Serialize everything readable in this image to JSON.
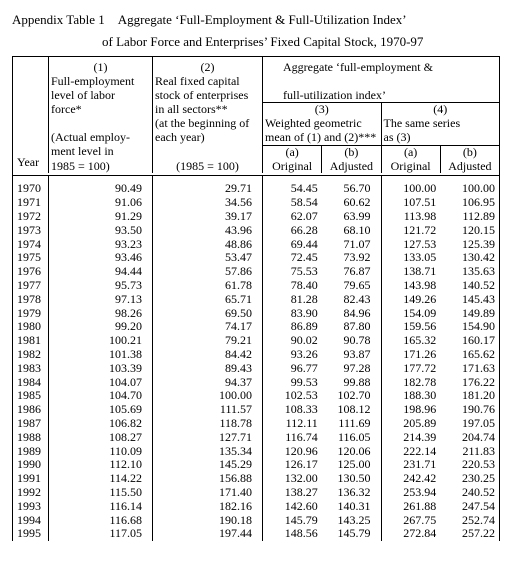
{
  "title_line1": "Appendix Table 1 Aggregate ‘Full-Employment & Full-Utilization Index’",
  "title_line2": "of Labor Force and Enterprises’ Fixed Capital Stock, 1970-97",
  "headers": {
    "col1_num": "(1)",
    "col1_a": "Full-employment",
    "col1_b": "level of labor",
    "col1_c": "force*",
    "col1_d": "(Actual employ-",
    "col1_e": "ment level in",
    "col1_f": "1985 = 100)",
    "col2_num": "(2)",
    "col2_a": "Real fixed capital",
    "col2_b": "stock of enterprises",
    "col2_c": "in all sectors**",
    "col2_d": "(at the beginning of",
    "col2_e": "each year)",
    "col2_f": "(1985 = 100)",
    "agg_a": "Aggregate ‘full-employment &",
    "agg_b": "full-utilization index’",
    "col3_num": "(3)",
    "col3_a": "Weighted geometric",
    "col3_b": "mean of (1) and (2)***",
    "col4_num": "(4)",
    "col4_a": "The same series",
    "col4_b": "as (3)",
    "sub_a": "(a)",
    "sub_b": "(b)",
    "orig": "Original",
    "adj": "Adjusted",
    "year": "Year"
  },
  "rows": [
    {
      "y": "1970",
      "c1": "90.49",
      "c2": "29.71",
      "c3a": "54.45",
      "c3b": "56.70",
      "c4a": "100.00",
      "c4b": "100.00"
    },
    {
      "y": "1971",
      "c1": "91.06",
      "c2": "34.56",
      "c3a": "58.54",
      "c3b": "60.62",
      "c4a": "107.51",
      "c4b": "106.95"
    },
    {
      "y": "1972",
      "c1": "91.29",
      "c2": "39.17",
      "c3a": "62.07",
      "c3b": "63.99",
      "c4a": "113.98",
      "c4b": "112.89"
    },
    {
      "y": "1973",
      "c1": "93.50",
      "c2": "43.96",
      "c3a": "66.28",
      "c3b": "68.10",
      "c4a": "121.72",
      "c4b": "120.15"
    },
    {
      "y": "1974",
      "c1": "93.23",
      "c2": "48.86",
      "c3a": "69.44",
      "c3b": "71.07",
      "c4a": "127.53",
      "c4b": "125.39"
    },
    {
      "y": "1975",
      "c1": "93.46",
      "c2": "53.47",
      "c3a": "72.45",
      "c3b": "73.92",
      "c4a": "133.05",
      "c4b": "130.42"
    },
    {
      "y": "1976",
      "c1": "94.44",
      "c2": "57.86",
      "c3a": "75.53",
      "c3b": "76.87",
      "c4a": "138.71",
      "c4b": "135.63"
    },
    {
      "y": "1977",
      "c1": "95.73",
      "c2": "61.78",
      "c3a": "78.40",
      "c3b": "79.65",
      "c4a": "143.98",
      "c4b": "140.52"
    },
    {
      "y": "1978",
      "c1": "97.13",
      "c2": "65.71",
      "c3a": "81.28",
      "c3b": "82.43",
      "c4a": "149.26",
      "c4b": "145.43"
    },
    {
      "y": "1979",
      "c1": "98.26",
      "c2": "69.50",
      "c3a": "83.90",
      "c3b": "84.96",
      "c4a": "154.09",
      "c4b": "149.89"
    },
    {
      "y": "1980",
      "c1": "99.20",
      "c2": "74.17",
      "c3a": "86.89",
      "c3b": "87.80",
      "c4a": "159.56",
      "c4b": "154.90"
    },
    {
      "y": "1981",
      "c1": "100.21",
      "c2": "79.21",
      "c3a": "90.02",
      "c3b": "90.78",
      "c4a": "165.32",
      "c4b": "160.17"
    },
    {
      "y": "1982",
      "c1": "101.38",
      "c2": "84.42",
      "c3a": "93.26",
      "c3b": "93.87",
      "c4a": "171.26",
      "c4b": "165.62"
    },
    {
      "y": "1983",
      "c1": "103.39",
      "c2": "89.43",
      "c3a": "96.77",
      "c3b": "97.28",
      "c4a": "177.72",
      "c4b": "171.63"
    },
    {
      "y": "1984",
      "c1": "104.07",
      "c2": "94.37",
      "c3a": "99.53",
      "c3b": "99.88",
      "c4a": "182.78",
      "c4b": "176.22"
    },
    {
      "y": "1985",
      "c1": "104.70",
      "c2": "100.00",
      "c3a": "102.53",
      "c3b": "102.70",
      "c4a": "188.30",
      "c4b": "181.20"
    },
    {
      "y": "1986",
      "c1": "105.69",
      "c2": "111.57",
      "c3a": "108.33",
      "c3b": "108.12",
      "c4a": "198.96",
      "c4b": "190.76"
    },
    {
      "y": "1987",
      "c1": "106.82",
      "c2": "118.78",
      "c3a": "112.11",
      "c3b": "111.69",
      "c4a": "205.89",
      "c4b": "197.05"
    },
    {
      "y": "1988",
      "c1": "108.27",
      "c2": "127.71",
      "c3a": "116.74",
      "c3b": "116.05",
      "c4a": "214.39",
      "c4b": "204.74"
    },
    {
      "y": "1989",
      "c1": "110.09",
      "c2": "135.34",
      "c3a": "120.96",
      "c3b": "120.06",
      "c4a": "222.14",
      "c4b": "211.83"
    },
    {
      "y": "1990",
      "c1": "112.10",
      "c2": "145.29",
      "c3a": "126.17",
      "c3b": "125.00",
      "c4a": "231.71",
      "c4b": "220.53"
    },
    {
      "y": "1991",
      "c1": "114.22",
      "c2": "156.88",
      "c3a": "132.00",
      "c3b": "130.50",
      "c4a": "242.42",
      "c4b": "230.25"
    },
    {
      "y": "1992",
      "c1": "115.50",
      "c2": "171.40",
      "c3a": "138.27",
      "c3b": "136.32",
      "c4a": "253.94",
      "c4b": "240.52"
    },
    {
      "y": "1993",
      "c1": "116.14",
      "c2": "182.16",
      "c3a": "142.60",
      "c3b": "140.31",
      "c4a": "261.88",
      "c4b": "247.54"
    },
    {
      "y": "1994",
      "c1": "116.68",
      "c2": "190.18",
      "c3a": "145.79",
      "c3b": "143.25",
      "c4a": "267.75",
      "c4b": "252.74"
    },
    {
      "y": "1995",
      "c1": "117.05",
      "c2": "197.44",
      "c3a": "148.56",
      "c3b": "145.79",
      "c4a": "272.84",
      "c4b": "257.22"
    }
  ]
}
